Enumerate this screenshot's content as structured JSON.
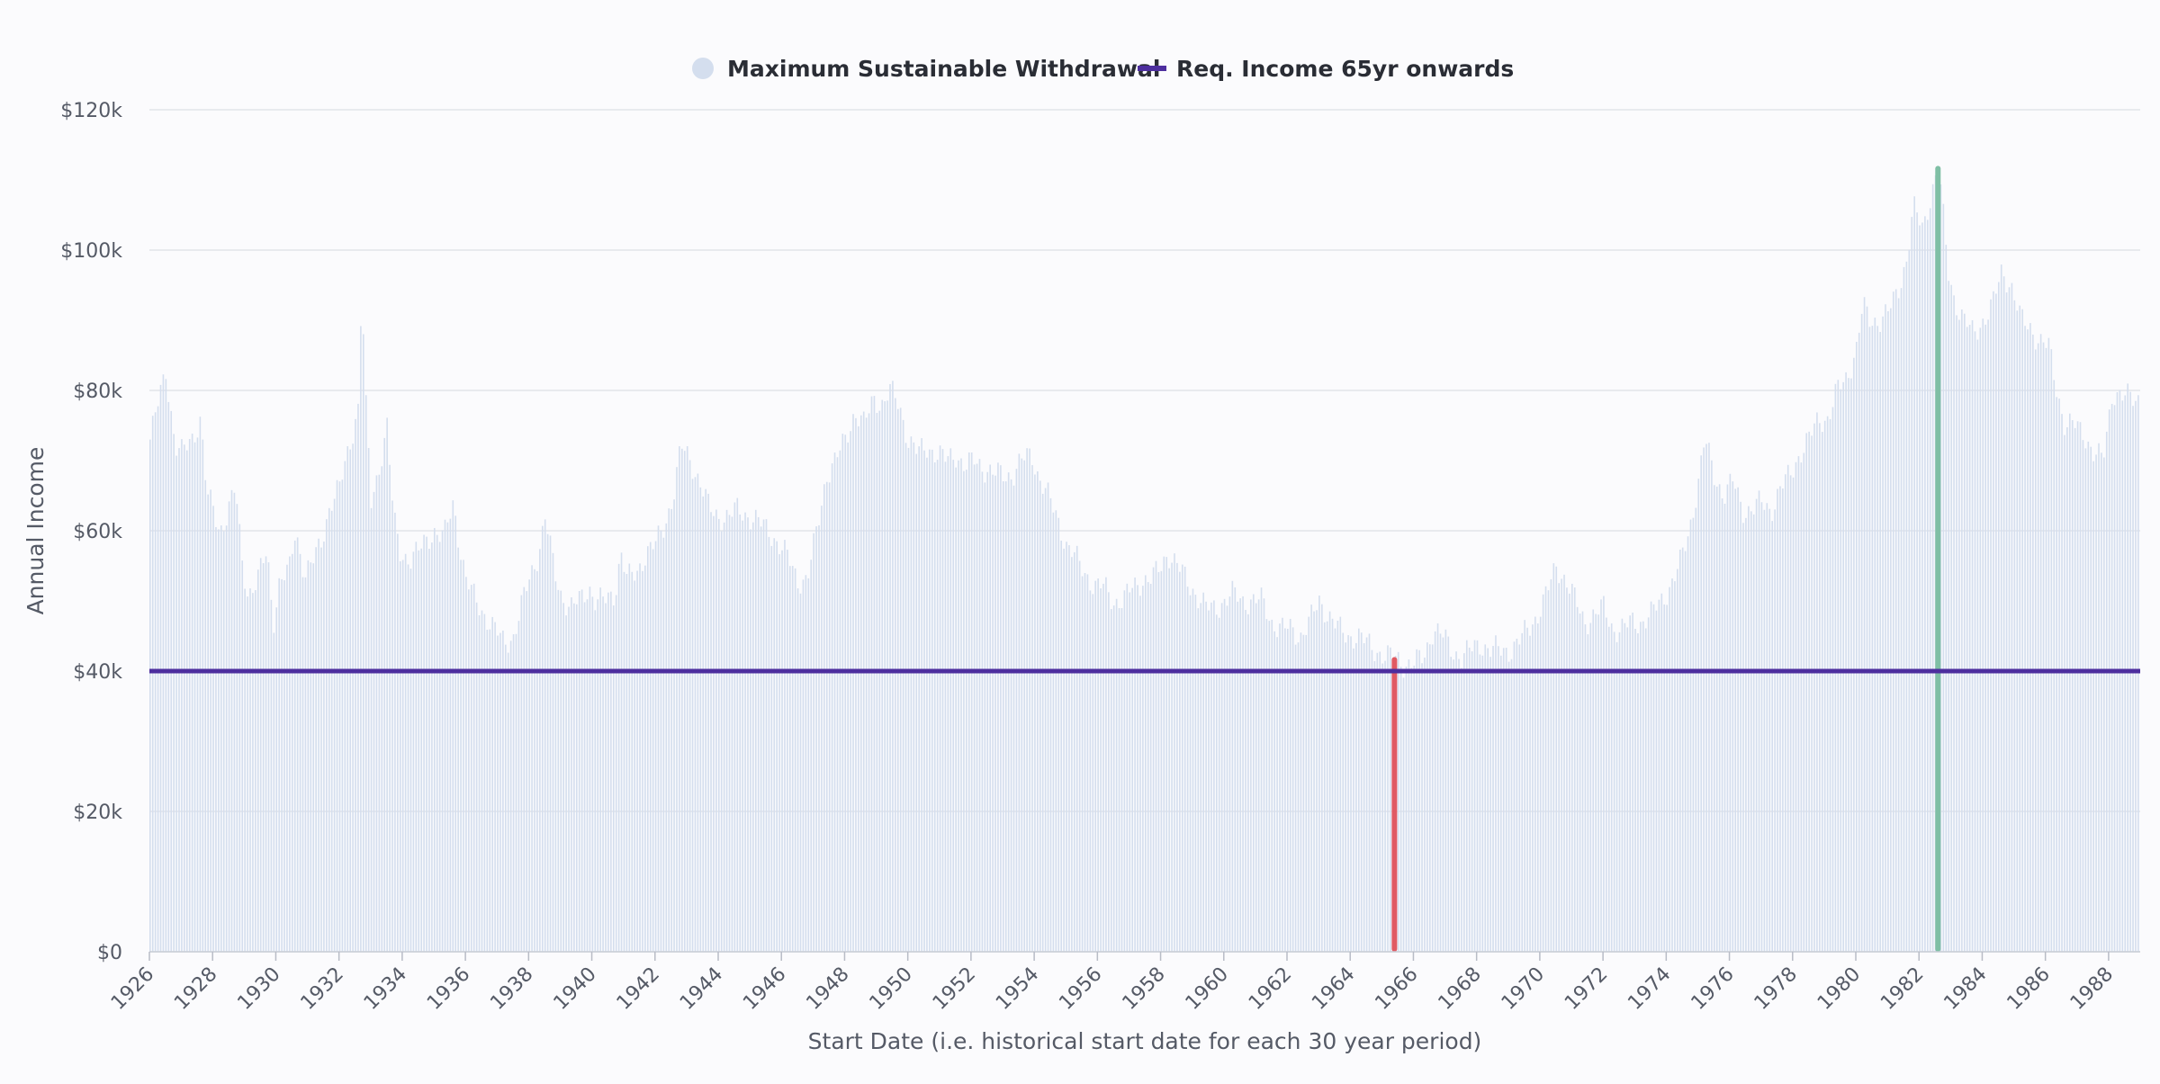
{
  "chart_data": {
    "type": "bar",
    "title": "",
    "xlabel": "Start Date (i.e. historical start date for each 30 year period)",
    "ylabel": "Annual Income",
    "x_range": [
      "1926-01",
      "1989-01"
    ],
    "ylim": [
      0,
      120000
    ],
    "y_ticks": [
      0,
      20000,
      40000,
      60000,
      80000,
      100000,
      120000
    ],
    "y_tick_labels": [
      "$0",
      "$20k",
      "$40k",
      "$60k",
      "$80k",
      "$100k",
      "$120k"
    ],
    "x_tick_labels": [
      "1926",
      "1928",
      "1930",
      "1932",
      "1934",
      "1936",
      "1938",
      "1940",
      "1942",
      "1944",
      "1946",
      "1948",
      "1950",
      "1952",
      "1954",
      "1956",
      "1958",
      "1960",
      "1962",
      "1964",
      "1966",
      "1968",
      "1970",
      "1972",
      "1974",
      "1976",
      "1978",
      "1980",
      "1982",
      "1984",
      "1986",
      "1988"
    ],
    "grid": true,
    "legend_position": "top-center",
    "series": [
      {
        "name": "Maximum Sustainable Withdrawal",
        "kind": "monthly-bars",
        "color": "#d4deee",
        "values": [
          [
            1926.0,
            73000
          ],
          [
            1926.5,
            83000
          ],
          [
            1926.8,
            72000
          ],
          [
            1927.0,
            71000
          ],
          [
            1927.3,
            73000
          ],
          [
            1927.6,
            76000
          ],
          [
            1927.8,
            65000
          ],
          [
            1928.0,
            63000
          ],
          [
            1928.2,
            60000
          ],
          [
            1928.4,
            62000
          ],
          [
            1928.7,
            66000
          ],
          [
            1928.9,
            56000
          ],
          [
            1929.1,
            51000
          ],
          [
            1929.4,
            53000
          ],
          [
            1929.7,
            57000
          ],
          [
            1929.9,
            47000
          ],
          [
            1930.1,
            53000
          ],
          [
            1930.4,
            54000
          ],
          [
            1930.6,
            60000
          ],
          [
            1930.9,
            54000
          ],
          [
            1931.1,
            55000
          ],
          [
            1931.4,
            58000
          ],
          [
            1931.7,
            64000
          ],
          [
            1932.0,
            66000
          ],
          [
            1932.3,
            72000
          ],
          [
            1932.6,
            78000
          ],
          [
            1932.7,
            96000
          ],
          [
            1932.8,
            80000
          ],
          [
            1933.0,
            64000
          ],
          [
            1933.2,
            68000
          ],
          [
            1933.5,
            75000
          ],
          [
            1933.7,
            62000
          ],
          [
            1933.9,
            57000
          ],
          [
            1934.2,
            56000
          ],
          [
            1934.5,
            57000
          ],
          [
            1934.8,
            59000
          ],
          [
            1935.0,
            60000
          ],
          [
            1935.3,
            59000
          ],
          [
            1935.6,
            64000
          ],
          [
            1935.8,
            58000
          ],
          [
            1936.0,
            53000
          ],
          [
            1936.3,
            50000
          ],
          [
            1936.6,
            48000
          ],
          [
            1936.9,
            46000
          ],
          [
            1937.2,
            44000
          ],
          [
            1937.5,
            45000
          ],
          [
            1937.8,
            50000
          ],
          [
            1938.0,
            53000
          ],
          [
            1938.3,
            57000
          ],
          [
            1938.5,
            62000
          ],
          [
            1938.8,
            54000
          ],
          [
            1939.0,
            51000
          ],
          [
            1939.3,
            49000
          ],
          [
            1939.6,
            50000
          ],
          [
            1939.9,
            52000
          ],
          [
            1940.1,
            50000
          ],
          [
            1940.4,
            50000
          ],
          [
            1940.7,
            51000
          ],
          [
            1940.9,
            57000
          ],
          [
            1941.1,
            53000
          ],
          [
            1941.4,
            54000
          ],
          [
            1941.7,
            57000
          ],
          [
            1942.0,
            58000
          ],
          [
            1942.3,
            61000
          ],
          [
            1942.6,
            66000
          ],
          [
            1942.8,
            72000
          ],
          [
            1943.1,
            70000
          ],
          [
            1943.4,
            67000
          ],
          [
            1943.7,
            63000
          ],
          [
            1944.0,
            62000
          ],
          [
            1944.3,
            62000
          ],
          [
            1944.6,
            63000
          ],
          [
            1945.0,
            62000
          ],
          [
            1945.3,
            61000
          ],
          [
            1945.6,
            60000
          ],
          [
            1945.9,
            58000
          ],
          [
            1946.2,
            56000
          ],
          [
            1946.5,
            53000
          ],
          [
            1946.8,
            53000
          ],
          [
            1947.1,
            60000
          ],
          [
            1947.4,
            68000
          ],
          [
            1947.7,
            70000
          ],
          [
            1948.0,
            73000
          ],
          [
            1948.3,
            77000
          ],
          [
            1948.6,
            75000
          ],
          [
            1948.9,
            79000
          ],
          [
            1949.2,
            78000
          ],
          [
            1949.4,
            80000
          ],
          [
            1949.7,
            78000
          ],
          [
            1950.0,
            73000
          ],
          [
            1950.3,
            71000
          ],
          [
            1950.6,
            72000
          ],
          [
            1950.9,
            71000
          ],
          [
            1951.2,
            70000
          ],
          [
            1951.5,
            71000
          ],
          [
            1951.8,
            69000
          ],
          [
            1952.1,
            70000
          ],
          [
            1952.4,
            69000
          ],
          [
            1952.7,
            68000
          ],
          [
            1953.0,
            68000
          ],
          [
            1953.3,
            68000
          ],
          [
            1953.6,
            70000
          ],
          [
            1953.9,
            71000
          ],
          [
            1954.1,
            68000
          ],
          [
            1954.4,
            65000
          ],
          [
            1954.7,
            62000
          ],
          [
            1955.0,
            58000
          ],
          [
            1955.3,
            56000
          ],
          [
            1955.6,
            54000
          ],
          [
            1955.9,
            52000
          ],
          [
            1956.2,
            52000
          ],
          [
            1956.5,
            50000
          ],
          [
            1956.8,
            50000
          ],
          [
            1957.1,
            52000
          ],
          [
            1957.4,
            53000
          ],
          [
            1957.7,
            53000
          ],
          [
            1958.0,
            55000
          ],
          [
            1958.2,
            57000
          ],
          [
            1958.5,
            55000
          ],
          [
            1958.8,
            53000
          ],
          [
            1959.1,
            51000
          ],
          [
            1959.4,
            49000
          ],
          [
            1959.7,
            49000
          ],
          [
            1960.0,
            50000
          ],
          [
            1960.3,
            51000
          ],
          [
            1960.6,
            50000
          ],
          [
            1960.9,
            50000
          ],
          [
            1961.2,
            50000
          ],
          [
            1961.5,
            47000
          ],
          [
            1961.8,
            46000
          ],
          [
            1962.1,
            46000
          ],
          [
            1962.4,
            45000
          ],
          [
            1962.7,
            47000
          ],
          [
            1963.0,
            50000
          ],
          [
            1963.3,
            48000
          ],
          [
            1963.6,
            46000
          ],
          [
            1963.9,
            45000
          ],
          [
            1964.2,
            45000
          ],
          [
            1964.5,
            44000
          ],
          [
            1964.8,
            43000
          ],
          [
            1965.1,
            42000
          ],
          [
            1965.4,
            42000
          ],
          [
            1965.7,
            41000
          ],
          [
            1966.0,
            41000
          ],
          [
            1966.3,
            42000
          ],
          [
            1966.6,
            46000
          ],
          [
            1966.9,
            45000
          ],
          [
            1967.2,
            43000
          ],
          [
            1967.5,
            42000
          ],
          [
            1967.8,
            43000
          ],
          [
            1968.1,
            44000
          ],
          [
            1968.4,
            43000
          ],
          [
            1968.7,
            43000
          ],
          [
            1969.0,
            43000
          ],
          [
            1969.3,
            44000
          ],
          [
            1969.6,
            46000
          ],
          [
            1969.9,
            48000
          ],
          [
            1970.2,
            51000
          ],
          [
            1970.5,
            55000
          ],
          [
            1970.8,
            53000
          ],
          [
            1971.1,
            50000
          ],
          [
            1971.4,
            47000
          ],
          [
            1971.7,
            48000
          ],
          [
            1972.0,
            49000
          ],
          [
            1972.3,
            46000
          ],
          [
            1972.6,
            46000
          ],
          [
            1972.9,
            47000
          ],
          [
            1973.2,
            47000
          ],
          [
            1973.5,
            48000
          ],
          [
            1973.8,
            50000
          ],
          [
            1974.1,
            52000
          ],
          [
            1974.4,
            55000
          ],
          [
            1974.7,
            60000
          ],
          [
            1975.0,
            67000
          ],
          [
            1975.2,
            73000
          ],
          [
            1975.5,
            68000
          ],
          [
            1975.8,
            65000
          ],
          [
            1976.1,
            67000
          ],
          [
            1976.4,
            63000
          ],
          [
            1976.7,
            63000
          ],
          [
            1977.0,
            64000
          ],
          [
            1977.3,
            63000
          ],
          [
            1977.6,
            66000
          ],
          [
            1977.9,
            68000
          ],
          [
            1978.2,
            71000
          ],
          [
            1978.5,
            73000
          ],
          [
            1978.8,
            76000
          ],
          [
            1979.1,
            76000
          ],
          [
            1979.4,
            80000
          ],
          [
            1979.7,
            82000
          ],
          [
            1980.0,
            86000
          ],
          [
            1980.2,
            92000
          ],
          [
            1980.4,
            90000
          ],
          [
            1980.7,
            90000
          ],
          [
            1981.0,
            91000
          ],
          [
            1981.3,
            94000
          ],
          [
            1981.6,
            99000
          ],
          [
            1981.8,
            106000
          ],
          [
            1982.1,
            103000
          ],
          [
            1982.3,
            107000
          ],
          [
            1982.6,
            112000
          ],
          [
            1982.9,
            97000
          ],
          [
            1983.1,
            93000
          ],
          [
            1983.4,
            90000
          ],
          [
            1983.7,
            88000
          ],
          [
            1984.0,
            90000
          ],
          [
            1984.3,
            92000
          ],
          [
            1984.6,
            97000
          ],
          [
            1984.9,
            95000
          ],
          [
            1985.2,
            90000
          ],
          [
            1985.5,
            89000
          ],
          [
            1985.8,
            87000
          ],
          [
            1986.1,
            86000
          ],
          [
            1986.3,
            81000
          ],
          [
            1986.6,
            75000
          ],
          [
            1986.9,
            75000
          ],
          [
            1987.2,
            74000
          ],
          [
            1987.5,
            71000
          ],
          [
            1987.8,
            70000
          ],
          [
            1988.1,
            80000
          ],
          [
            1988.4,
            79000
          ],
          [
            1988.7,
            79000
          ],
          [
            1989.0,
            79000
          ]
        ]
      },
      {
        "name": "Req. Income 65yr onwards",
        "kind": "horizontal-line",
        "color": "#4d2e9e",
        "value": 40000
      }
    ],
    "highlights": [
      {
        "x": 1965.4,
        "value": 42000,
        "color": "#e05a63"
      },
      {
        "x": 1982.6,
        "value": 112000,
        "color": "#7fbfa5"
      }
    ]
  }
}
